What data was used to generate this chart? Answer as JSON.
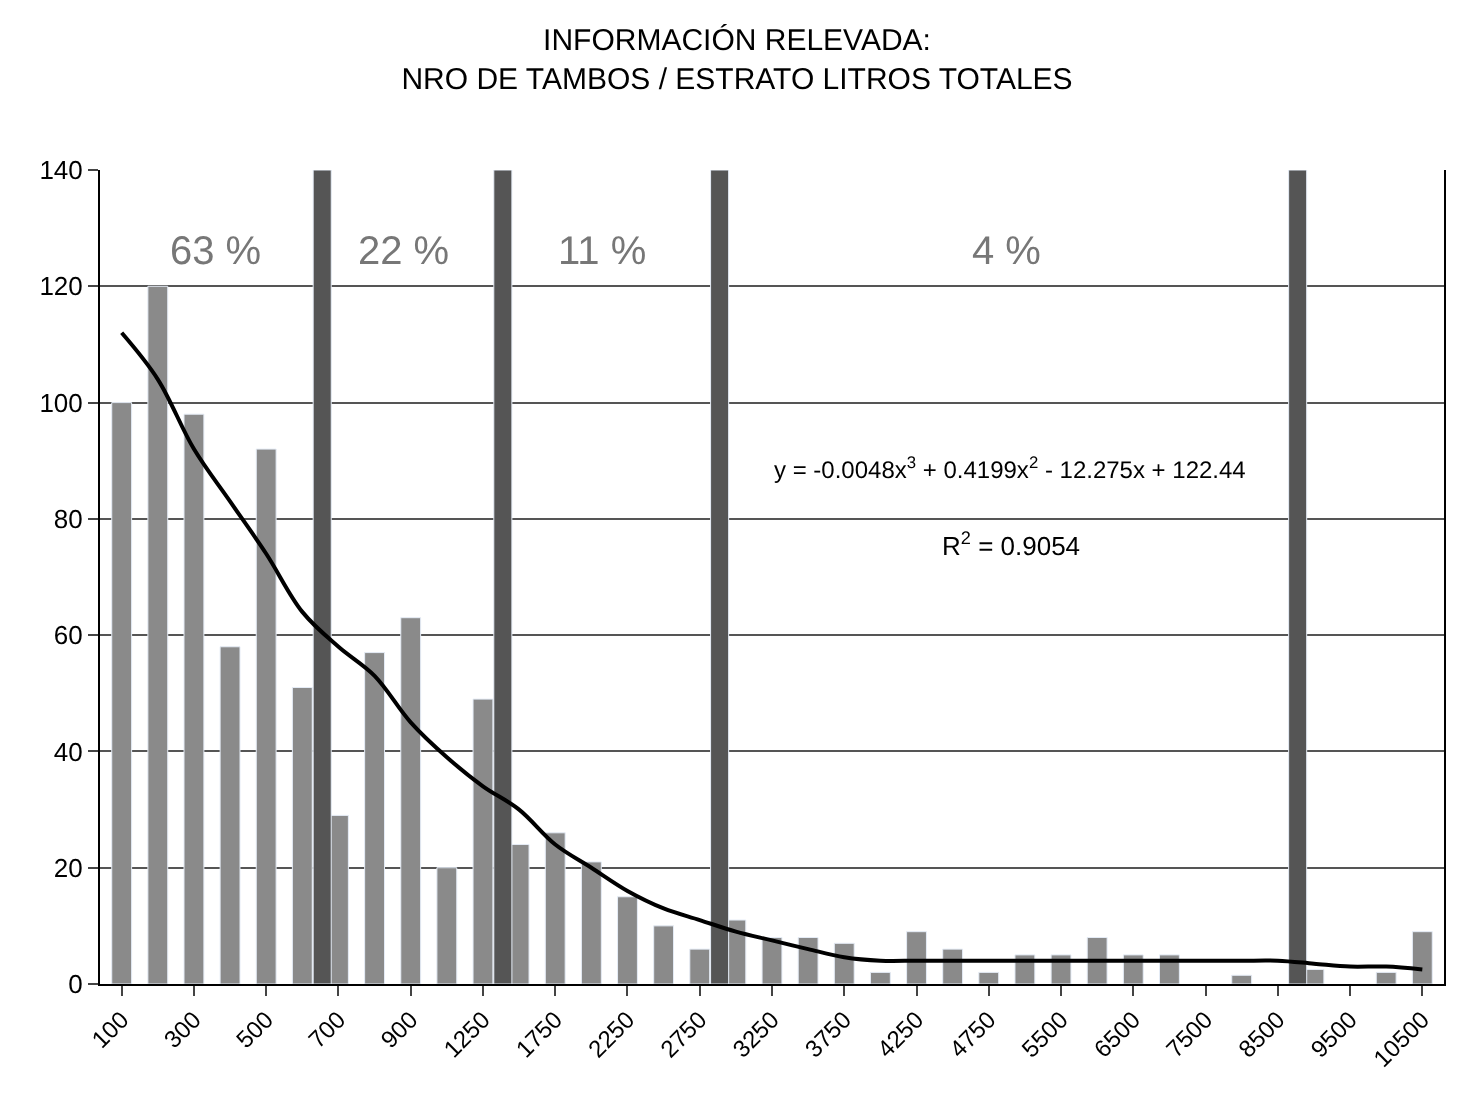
{
  "chart_data": {
    "type": "bar",
    "title": "INFORMACIÓN RELEVADA:\nNRO DE TAMBOS / ESTRATO LITROS TOTALES",
    "categories": [
      "100",
      null,
      "300",
      null,
      "500",
      null,
      "700",
      null,
      "900",
      null,
      "1250",
      null,
      "1750",
      null,
      "2250",
      null,
      "2750",
      null,
      "3250",
      null,
      "3750",
      null,
      "4250",
      null,
      "4750",
      null,
      "5500",
      null,
      "6500",
      null,
      "7500",
      null,
      "8500",
      null,
      "9500",
      null,
      "10500"
    ],
    "series": [
      {
        "color": "#8a8a8a",
        "values": [
          100,
          120,
          98,
          58,
          92,
          51,
          29,
          57,
          63,
          20,
          49,
          24,
          26,
          21,
          15,
          10,
          6,
          11,
          8,
          8,
          7,
          2,
          9,
          6,
          2,
          5,
          5,
          8,
          5,
          5,
          null,
          1.5,
          null,
          2.5,
          null,
          2,
          9
        ]
      },
      {
        "color": "#555555",
        "values": [
          null,
          null,
          null,
          null,
          null,
          140,
          null,
          null,
          null,
          null,
          140,
          null,
          null,
          null,
          null,
          null,
          140,
          null,
          null,
          null,
          null,
          null,
          null,
          null,
          null,
          null,
          null,
          null,
          null,
          null,
          null,
          null,
          140,
          null,
          null,
          null,
          null
        ]
      },
      {
        "type": "line",
        "color": "#000000",
        "values": [
          112,
          104,
          92,
          83,
          74,
          64,
          58,
          53,
          45,
          39,
          34,
          30,
          24,
          20,
          16,
          13,
          11,
          9,
          7.5,
          6,
          4.6,
          4,
          4,
          4,
          4,
          4,
          4,
          4,
          4,
          4,
          4,
          4,
          4,
          3.5,
          3,
          3,
          2.5
        ]
      }
    ],
    "ylim": [
      0,
      140
    ],
    "yticks": [
      0,
      20,
      40,
      60,
      80,
      100,
      120,
      140
    ],
    "grid": "y",
    "annotations": [
      "63 %",
      "22 %",
      "11 %",
      "4 %",
      "y = -0.0048x$^{3}$ + 0.4199x$^{2}$ - 12.275x + 122.44",
      "R$^{2}$ = 0.9054"
    ]
  }
}
